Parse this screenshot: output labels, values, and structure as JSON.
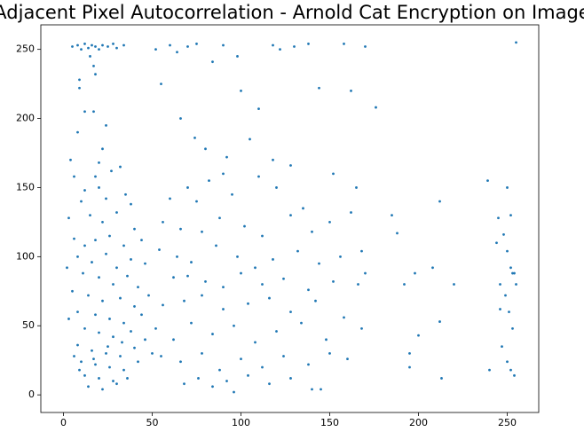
{
  "chart_data": {
    "type": "scatter",
    "title": "Adjacent Pixel Autocorrelation - Arnold Cat Encryption on Image",
    "color": "#1f77b4",
    "xlim": [
      -12.75,
      267.75
    ],
    "ylim": [
      -12.75,
      267.75
    ],
    "xticks": [
      0,
      50,
      100,
      150,
      200,
      250
    ],
    "yticks": [
      0,
      50,
      100,
      150,
      200,
      250
    ],
    "grid": false,
    "x": [
      5,
      8,
      10,
      12,
      14,
      16,
      18,
      20,
      22,
      25,
      28,
      30,
      34,
      15,
      17,
      18,
      9,
      9,
      12,
      17,
      24,
      22,
      8,
      20,
      4,
      18,
      27,
      32,
      6,
      12,
      10,
      20,
      24,
      35,
      38,
      3,
      15,
      22,
      30,
      40,
      6,
      12,
      18,
      26,
      34,
      44,
      8,
      16,
      24,
      30,
      38,
      46,
      2,
      11,
      20,
      28,
      36,
      42,
      5,
      14,
      22,
      32,
      40,
      48,
      8,
      18,
      26,
      34,
      44,
      3,
      12,
      20,
      28,
      38,
      46,
      8,
      16,
      24,
      32,
      40,
      50,
      10,
      18,
      26,
      34,
      42,
      12,
      20,
      28,
      36,
      14,
      22,
      30,
      9,
      17,
      25,
      33,
      6,
      55,
      52,
      60,
      64,
      70,
      75,
      84,
      90,
      100,
      98,
      110,
      118,
      122,
      130,
      138,
      144,
      158,
      162,
      170,
      176,
      66,
      74,
      80,
      92,
      105,
      90,
      82,
      70,
      110,
      118,
      128,
      60,
      75,
      95,
      120,
      135,
      152,
      165,
      56,
      66,
      78,
      88,
      102,
      112,
      128,
      140,
      150,
      162,
      168,
      185,
      188,
      54,
      64,
      72,
      86,
      98,
      108,
      118,
      132,
      144,
      156,
      170,
      62,
      70,
      80,
      90,
      100,
      112,
      124,
      138,
      152,
      166,
      192,
      198,
      208,
      56,
      68,
      78,
      90,
      104,
      116,
      128,
      142,
      158,
      168,
      212,
      52,
      62,
      72,
      84,
      96,
      108,
      120,
      134,
      148,
      55,
      66,
      78,
      88,
      100,
      112,
      124,
      138,
      150,
      160,
      195,
      200,
      220,
      213,
      76,
      84,
      92,
      104,
      116,
      128,
      140,
      68,
      96,
      145,
      195,
      240,
      245,
      248,
      250,
      252,
      254,
      246,
      249,
      251,
      253,
      247,
      250,
      252,
      254,
      244,
      252,
      250,
      212,
      239,
      253,
      255,
      246,
      255
    ],
    "y": [
      252,
      253,
      250,
      254,
      251,
      253,
      252,
      250,
      253,
      252,
      254,
      251,
      253,
      245,
      238,
      232,
      228,
      222,
      205,
      205,
      195,
      178,
      190,
      168,
      170,
      158,
      162,
      165,
      158,
      148,
      140,
      150,
      142,
      145,
      138,
      128,
      130,
      125,
      132,
      120,
      113,
      108,
      112,
      115,
      108,
      112,
      100,
      96,
      102,
      92,
      98,
      95,
      92,
      88,
      85,
      80,
      86,
      78,
      75,
      72,
      68,
      70,
      64,
      72,
      60,
      58,
      55,
      52,
      58,
      55,
      48,
      45,
      42,
      46,
      40,
      36,
      32,
      30,
      28,
      34,
      30,
      24,
      22,
      20,
      18,
      24,
      14,
      12,
      10,
      12,
      6,
      4,
      8,
      18,
      26,
      35,
      38,
      28,
      225,
      250,
      253,
      248,
      252,
      254,
      241,
      253,
      220,
      245,
      207,
      253,
      250,
      252,
      254,
      222,
      254,
      220,
      252,
      208,
      200,
      186,
      178,
      172,
      185,
      160,
      155,
      150,
      158,
      170,
      166,
      142,
      140,
      145,
      150,
      135,
      160,
      150,
      125,
      120,
      118,
      128,
      122,
      115,
      130,
      118,
      125,
      132,
      104,
      130,
      117,
      105,
      100,
      96,
      108,
      100,
      92,
      98,
      104,
      95,
      100,
      88,
      85,
      86,
      82,
      78,
      88,
      80,
      84,
      76,
      82,
      80,
      80,
      88,
      92,
      65,
      68,
      72,
      62,
      66,
      70,
      60,
      68,
      56,
      48,
      53,
      48,
      40,
      52,
      44,
      50,
      38,
      46,
      52,
      40,
      28,
      24,
      30,
      18,
      26,
      20,
      28,
      22,
      30,
      26,
      30,
      43,
      80,
      12,
      12,
      6,
      10,
      14,
      8,
      12,
      4,
      8,
      2,
      4,
      20,
      18,
      128,
      116,
      104,
      92,
      88,
      80,
      72,
      60,
      48,
      35,
      24,
      18,
      14,
      110,
      130,
      150,
      140,
      155,
      88,
      80,
      62,
      255
    ]
  }
}
